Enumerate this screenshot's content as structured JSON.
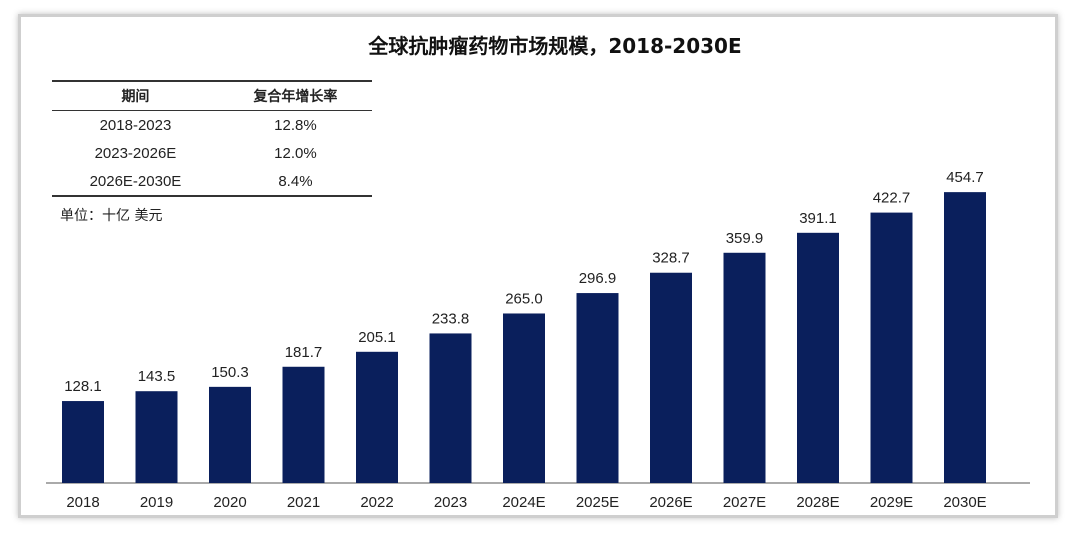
{
  "chart_data": {
    "type": "bar",
    "title": "全球抗肿瘤药物市场规模，2018-2030E",
    "unit_label": "单位：十亿 美元",
    "categories": [
      "2018",
      "2019",
      "2020",
      "2021",
      "2022",
      "2023",
      "2024E",
      "2025E",
      "2026E",
      "2027E",
      "2028E",
      "2029E",
      "2030E"
    ],
    "values": [
      128.1,
      143.5,
      150.3,
      181.7,
      205.1,
      233.8,
      265.0,
      296.9,
      328.7,
      359.9,
      391.1,
      422.7,
      454.7
    ],
    "value_labels": [
      "128.1",
      "143.5",
      "150.3",
      "181.7",
      "205.1",
      "233.8",
      "265.0",
      "296.9",
      "328.7",
      "359.9",
      "391.1",
      "422.7",
      "454.7"
    ],
    "bar_color": "#0a1f5c",
    "ylim": [
      0,
      500
    ],
    "grid": false,
    "legend": "none"
  },
  "cagr_table": {
    "headers": [
      "期间",
      "复合年增长率"
    ],
    "rows": [
      [
        "2018-2023",
        "12.8%"
      ],
      [
        "2023-2026E",
        "12.0%"
      ],
      [
        "2026E-2030E",
        "8.4%"
      ]
    ]
  }
}
